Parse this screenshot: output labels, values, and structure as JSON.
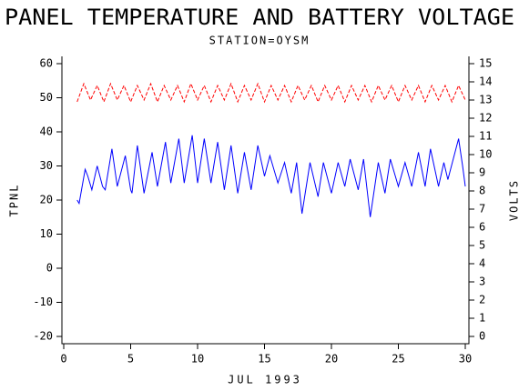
{
  "chart_data": {
    "type": "line",
    "title": "PANEL TEMPERATURE AND BATTERY VOLTAGE",
    "subtitle": "STATION=OYSM",
    "x_label": "JUL 1993",
    "y_label": "TPNL",
    "y2_label": "VOLTS",
    "xlim": [
      0,
      30
    ],
    "xticks": [
      0,
      5,
      10,
      15,
      20,
      25,
      30
    ],
    "ylim": [
      -20,
      60
    ],
    "yticks": [
      -20,
      -10,
      0,
      10,
      20,
      30,
      40,
      50,
      60
    ],
    "y2lim": [
      0,
      15
    ],
    "y2ticks": [
      0,
      1,
      2,
      3,
      4,
      5,
      6,
      7,
      8,
      9,
      10,
      11,
      12,
      13,
      14,
      15
    ],
    "series": [
      {
        "color": "#0000ff",
        "dashed": false,
        "x": [
          1.0,
          1.15,
          1.6,
          1.8,
          2.1,
          2.5,
          2.9,
          3.1,
          3.6,
          4.0,
          4.6,
          5.0,
          5.1,
          5.5,
          6.0,
          6.6,
          7.0,
          7.6,
          8.0,
          8.6,
          9.0,
          9.6,
          10.0,
          10.5,
          11.0,
          11.5,
          12.0,
          12.5,
          13.0,
          13.5,
          14.0,
          14.5,
          15.0,
          15.4,
          16.0,
          16.5,
          17.0,
          17.4,
          17.8,
          18.4,
          19.0,
          19.4,
          20.0,
          20.5,
          21.0,
          21.4,
          22.0,
          22.4,
          22.9,
          23.5,
          24.0,
          24.4,
          25.0,
          25.5,
          26.0,
          26.5,
          27.0,
          27.4,
          28.0,
          28.4,
          28.7,
          29.5,
          29.8,
          30.0
        ],
        "values": [
          20,
          19,
          29,
          27,
          23,
          30,
          24,
          23,
          35,
          24,
          33,
          23,
          22,
          36,
          22,
          34,
          24,
          37,
          25,
          38,
          25,
          39,
          25,
          38,
          25,
          37,
          23,
          36,
          22,
          34,
          23,
          36,
          27,
          33,
          25,
          31,
          22,
          31,
          16,
          31,
          21,
          31,
          22,
          31,
          24,
          32,
          23,
          32,
          15,
          31,
          22,
          32,
          24,
          31,
          24,
          34,
          24,
          35,
          24,
          31,
          26,
          38,
          30,
          24
        ]
      },
      {
        "color": "#ff0000",
        "dashed": true,
        "axis": "y2",
        "x": [
          1.0,
          1.5,
          2.0,
          2.5,
          3.0,
          3.5,
          4.0,
          4.5,
          5.0,
          5.5,
          6.0,
          6.5,
          7.0,
          7.5,
          8.0,
          8.5,
          9.0,
          9.5,
          10.0,
          10.5,
          11.0,
          11.5,
          12.0,
          12.5,
          13.0,
          13.5,
          14.0,
          14.5,
          15.0,
          15.5,
          16.0,
          16.5,
          17.0,
          17.5,
          18.0,
          18.5,
          19.0,
          19.5,
          20.0,
          20.5,
          21.0,
          21.5,
          22.0,
          22.5,
          23.0,
          23.5,
          24.0,
          24.5,
          25.0,
          25.5,
          26.0,
          26.5,
          27.0,
          27.5,
          28.0,
          28.5,
          29.0,
          29.5,
          30.0
        ],
        "values": [
          12.9,
          13.9,
          13.0,
          13.8,
          12.9,
          13.9,
          13.0,
          13.8,
          12.9,
          13.8,
          13.0,
          13.9,
          12.9,
          13.8,
          13.0,
          13.8,
          12.9,
          13.9,
          13.0,
          13.8,
          12.9,
          13.8,
          13.0,
          13.9,
          12.9,
          13.8,
          13.0,
          13.9,
          12.9,
          13.8,
          13.0,
          13.8,
          12.9,
          13.8,
          13.0,
          13.8,
          12.9,
          13.8,
          13.0,
          13.8,
          12.9,
          13.8,
          13.0,
          13.8,
          12.9,
          13.8,
          13.0,
          13.8,
          12.9,
          13.8,
          13.0,
          13.8,
          12.9,
          13.8,
          13.0,
          13.8,
          12.9,
          13.8,
          13.0
        ]
      }
    ]
  }
}
